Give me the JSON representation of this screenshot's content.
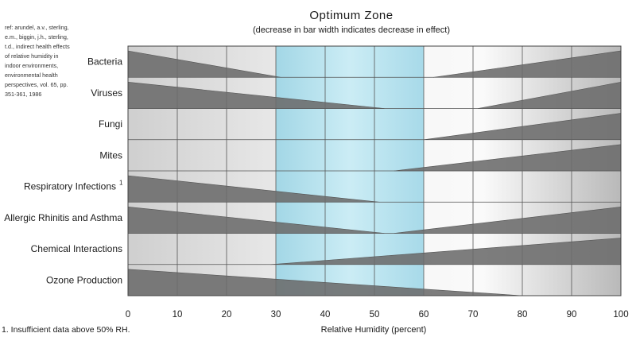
{
  "chart_data": {
    "type": "area",
    "title": "Optimum Zone",
    "subtitle": "(decrease in bar width indicates decrease in effect)",
    "xlabel": "Relative Humidity (percent)",
    "ylabel": "",
    "xlim": [
      0,
      100
    ],
    "x_ticks": [
      "0",
      "10",
      "20",
      "30",
      "40",
      "50",
      "60",
      "70",
      "80",
      "90",
      "100"
    ],
    "optimum_zone": [
      30,
      60
    ],
    "grid": true,
    "reference": [
      "ref: arundel, a.v., sterling,",
      "e.m., biggin, j.h., sterling,",
      "t.d., indirect health effects",
      "of relative humidity in",
      "indoor environments,",
      "environmental health",
      "perspectives, vol. 65, pp.",
      "351-361, 1986"
    ],
    "footnote": "1. Insufficient data above 50% RH.",
    "max_effect": 1.0,
    "rows": [
      {
        "label": "Bacteria",
        "superscript": "",
        "left": [
          [
            0,
            1.0
          ],
          [
            31,
            0.0
          ]
        ],
        "right": [
          [
            62,
            0.0
          ],
          [
            100,
            1.0
          ]
        ]
      },
      {
        "label": "Viruses",
        "superscript": "",
        "left": [
          [
            0,
            1.0
          ],
          [
            52,
            0.0
          ]
        ],
        "right": [
          [
            71,
            0.0
          ],
          [
            100,
            1.0
          ]
        ]
      },
      {
        "label": "Fungi",
        "superscript": "",
        "left": [],
        "right": [
          [
            60,
            0.0
          ],
          [
            100,
            1.0
          ]
        ]
      },
      {
        "label": "Mites",
        "superscript": "",
        "left": [],
        "right": [
          [
            54,
            0.0
          ],
          [
            100,
            1.0
          ]
        ]
      },
      {
        "label": "Respiratory Infections",
        "superscript": "1",
        "left": [
          [
            0,
            1.0
          ],
          [
            51,
            0.0
          ]
        ],
        "right": []
      },
      {
        "label": "Allergic Rhinitis and Asthma",
        "superscript": "",
        "left": [
          [
            0,
            1.0
          ],
          [
            52,
            0.0
          ]
        ],
        "right": [
          [
            54,
            0.0
          ],
          [
            100,
            1.0
          ]
        ]
      },
      {
        "label": "Chemical Interactions",
        "superscript": "",
        "left": [],
        "right": [
          [
            29,
            0.0
          ],
          [
            100,
            1.0
          ]
        ]
      },
      {
        "label": "Ozone Production",
        "superscript": "",
        "left": [
          [
            0,
            1.0
          ],
          [
            80,
            0.0
          ]
        ],
        "right": []
      }
    ],
    "colors": {
      "wedge": "#6b6b6b",
      "wedge_stroke": "#555555",
      "optimum_fill": "#a8dcea",
      "background_left": "#d0d0d0",
      "background_right": "#bdbdbd",
      "grid": "#555555"
    }
  }
}
